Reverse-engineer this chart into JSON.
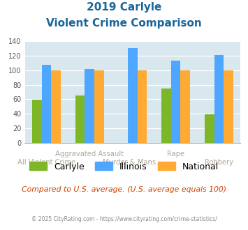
{
  "title_line1": "2019 Carlyle",
  "title_line2": "Violent Crime Comparison",
  "categories": [
    "All Violent Crime",
    "Aggravated Assault",
    "Murder & Mans...",
    "Rape",
    "Robbery"
  ],
  "upper_labels": {
    "1": "Aggravated Assault",
    "3": "Rape"
  },
  "lower_labels": {
    "0": "All Violent Crime",
    "2": "Murder & Mans...",
    "4": "Robbery"
  },
  "series": {
    "Carlyle": [
      59,
      65,
      0,
      75,
      39
    ],
    "Illinois": [
      108,
      102,
      131,
      113,
      121
    ],
    "National": [
      100,
      100,
      100,
      100,
      100
    ]
  },
  "colors": {
    "Carlyle": "#7db728",
    "Illinois": "#4da6ff",
    "National": "#ffaa33"
  },
  "ylim": [
    0,
    140
  ],
  "yticks": [
    0,
    20,
    40,
    60,
    80,
    100,
    120,
    140
  ],
  "plot_bg": "#d8e8ee",
  "fig_bg": "#ffffff",
  "title_color": "#1a6699",
  "label_color": "#b0a898",
  "footer_text": "Compared to U.S. average. (U.S. average equals 100)",
  "footer_color": "#cc4400",
  "copyright_text": "© 2025 CityRating.com - https://www.cityrating.com/crime-statistics/",
  "copyright_color": "#888888",
  "bar_width": 0.22
}
